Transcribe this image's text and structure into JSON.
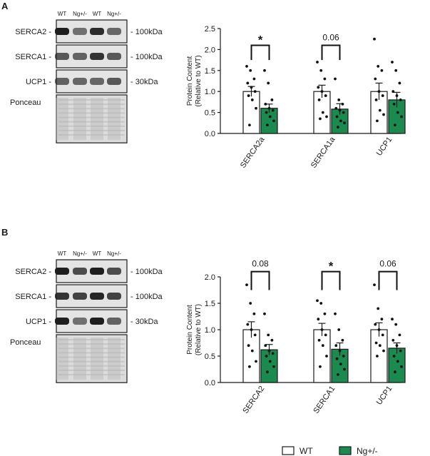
{
  "panels": [
    {
      "label": "A",
      "blot": {
        "lanes": [
          "WT",
          "Ng+/-",
          "WT",
          "Ng+/-"
        ],
        "rows": [
          {
            "name": "SERCA2 -",
            "size": "- 100kDa",
            "kind": "band",
            "intensity": [
              1.0,
              0.45,
              0.9,
              0.5
            ]
          },
          {
            "name": "SERCA1 -",
            "size": "- 100kDa",
            "kind": "band",
            "intensity": [
              0.6,
              0.55,
              0.85,
              0.6
            ]
          },
          {
            "name": "UCP1 -",
            "size": "- 30kDa",
            "kind": "band",
            "intensity": [
              0.55,
              0.5,
              0.5,
              0.6
            ]
          },
          {
            "name": "Ponceau",
            "size": "",
            "kind": "stain",
            "intensity": [
              0.5,
              0.5,
              0.5,
              0.5
            ]
          }
        ]
      },
      "chart_data": {
        "type": "bar",
        "ylabel": [
          "Protein Content",
          "(Relative to WT)"
        ],
        "ylim": [
          0,
          2.5
        ],
        "yticks": [
          "0.0",
          "0.5",
          "1.0",
          "1.5",
          "2.0",
          "2.5"
        ],
        "categories": [
          "SERCA2a",
          "SERCA1a",
          "UCP1"
        ],
        "series": [
          {
            "name": "WT",
            "values": [
              1.0,
              1.0,
              1.0
            ],
            "sem": [
              0.12,
              0.15,
              0.2
            ],
            "points": [
              [
                1.6,
                1.5,
                1.3,
                1.2,
                1.1,
                1.0,
                0.9,
                0.8,
                0.6,
                0.2
              ],
              [
                1.7,
                1.5,
                1.3,
                1.1,
                1.0,
                0.9,
                0.8,
                0.5,
                0.4,
                0.35
              ],
              [
                2.25,
                1.6,
                1.5,
                1.3,
                1.0,
                0.9,
                0.8,
                0.55,
                0.45,
                0.3
              ]
            ]
          },
          {
            "name": "Ng+/-",
            "values": [
              0.6,
              0.58,
              0.8
            ],
            "sem": [
              0.1,
              0.13,
              0.18
            ],
            "points": [
              [
                1.5,
                1.2,
                0.8,
                0.7,
                0.6,
                0.55,
                0.5,
                0.4,
                0.3,
                0.2
              ],
              [
                1.3,
                0.8,
                0.7,
                0.6,
                0.55,
                0.5,
                0.4,
                0.3,
                0.25,
                0.15
              ],
              [
                1.7,
                1.5,
                1.2,
                1.0,
                0.9,
                0.8,
                0.7,
                0.5,
                0.4,
                0.2
              ]
            ]
          }
        ],
        "brackets": [
          {
            "category": 0,
            "text": "*",
            "height": 2.1
          },
          {
            "category": 1,
            "text": "0.06",
            "height": 2.1
          }
        ]
      }
    },
    {
      "label": "B",
      "blot": {
        "lanes": [
          "WT",
          "Ng+/-",
          "WT",
          "Ng+/-"
        ],
        "rows": [
          {
            "name": "SERCA2 -",
            "size": "- 100kDa",
            "kind": "band",
            "intensity": [
              1.0,
              0.7,
              1.0,
              0.7
            ]
          },
          {
            "name": "SERCA1 -",
            "size": "- 100kDa",
            "kind": "band",
            "intensity": [
              0.85,
              0.75,
              0.95,
              0.75
            ]
          },
          {
            "name": "UCP1 -",
            "size": "- 30kDa",
            "kind": "band",
            "intensity": [
              1.0,
              0.45,
              1.0,
              0.55
            ]
          },
          {
            "name": "Ponceau",
            "size": "",
            "kind": "stain",
            "intensity": [
              0.5,
              0.5,
              0.5,
              0.5
            ]
          }
        ]
      },
      "chart_data": {
        "type": "bar",
        "ylabel": [
          "Protein Content",
          "(Relative to WT)"
        ],
        "ylim": [
          0,
          2.0
        ],
        "yticks": [
          "0.0",
          "0.5",
          "1.0",
          "1.5",
          "2.0"
        ],
        "categories": [
          "SERCA2",
          "SERCA1",
          "UCP1"
        ],
        "series": [
          {
            "name": "WT",
            "values": [
              1.0,
              1.0,
              1.0
            ],
            "sem": [
              0.15,
              0.12,
              0.13
            ],
            "points": [
              [
                1.85,
                1.5,
                1.3,
                1.1,
                1.0,
                0.9,
                0.7,
                0.6,
                0.4,
                0.3
              ],
              [
                1.55,
                1.5,
                1.3,
                1.2,
                1.0,
                0.9,
                0.8,
                0.7,
                0.5,
                0.3
              ],
              [
                1.85,
                1.4,
                1.2,
                1.1,
                1.0,
                0.9,
                0.75,
                0.7,
                0.6,
                0.5
              ]
            ]
          },
          {
            "name": "Ng+/-",
            "values": [
              0.62,
              0.63,
              0.65
            ],
            "sem": [
              0.1,
              0.12,
              0.1
            ],
            "points": [
              [
                1.3,
                0.9,
                0.8,
                0.7,
                0.6,
                0.55,
                0.5,
                0.4,
                0.3,
                0.2
              ],
              [
                1.3,
                1.0,
                0.8,
                0.7,
                0.6,
                0.5,
                0.45,
                0.35,
                0.25,
                0.15
              ],
              [
                1.2,
                1.1,
                0.9,
                0.8,
                0.7,
                0.6,
                0.5,
                0.4,
                0.3,
                0.2
              ]
            ]
          }
        ],
        "brackets": [
          {
            "category": 0,
            "text": "0.08",
            "height": 2.1
          },
          {
            "category": 1,
            "text": "*",
            "height": 2.1
          },
          {
            "category": 2,
            "text": "0.06",
            "height": 2.1
          }
        ]
      }
    }
  ],
  "legend": [
    {
      "name": "WT",
      "color": "#ffffff"
    },
    {
      "name": "Ng+/-",
      "color": "#1a8a4f"
    }
  ],
  "colors": {
    "wt": "#ffffff",
    "ng": "#1a8a4f",
    "ink": "#1a1a1a"
  }
}
